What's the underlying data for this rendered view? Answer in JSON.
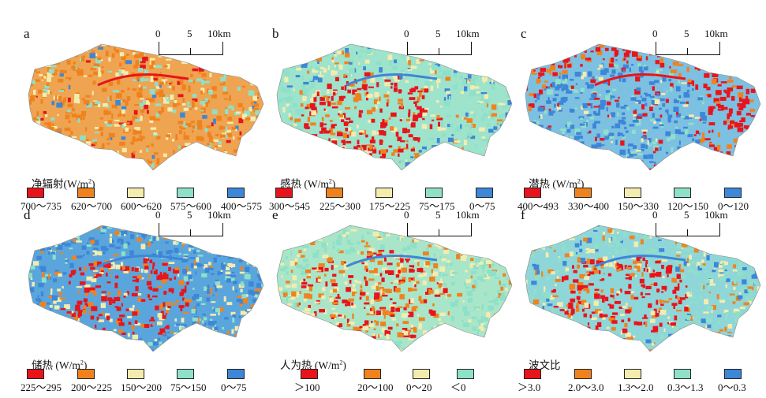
{
  "panels": [
    {
      "letter": "a",
      "legend_title": "净辐射(W/m",
      "legend_unit_tail": ")",
      "scale": {
        "t0": "0",
        "t5": "5",
        "t10": "10km"
      },
      "legend": [
        {
          "label": "700～735",
          "color": "#e8141c"
        },
        {
          "label": "620～700",
          "color": "#f0821e"
        },
        {
          "label": "600～620",
          "color": "#f4ecae"
        },
        {
          "label": "575～600",
          "color": "#8fe0c8"
        },
        {
          "label": "400～575",
          "color": "#3d86d8"
        }
      ],
      "dominant": "#eea451"
    },
    {
      "letter": "b",
      "legend_title": "感热 (W/m",
      "legend_unit_tail": ")",
      "scale": {
        "t0": "0",
        "t5": "5",
        "t10": "10km"
      },
      "legend": [
        {
          "label": "300～545",
          "color": "#e8141c"
        },
        {
          "label": "225～300",
          "color": "#f0821e"
        },
        {
          "label": "175～225",
          "color": "#f4ecae"
        },
        {
          "label": "75～175",
          "color": "#8fe0c8"
        },
        {
          "label": "0～75",
          "color": "#3d86d8"
        }
      ],
      "dominant": "#9ee3cc"
    },
    {
      "letter": "c",
      "legend_title": "潜热 (W/m",
      "legend_unit_tail": ")",
      "scale": {
        "t0": "0",
        "t5": "5",
        "t10": "10km"
      },
      "legend": [
        {
          "label": "400～493",
          "color": "#e8141c"
        },
        {
          "label": "330～400",
          "color": "#f0821e"
        },
        {
          "label": "150～330",
          "color": "#f4ecae"
        },
        {
          "label": "120～150",
          "color": "#8fe0c8"
        },
        {
          "label": "0～120",
          "color": "#3d86d8"
        }
      ],
      "dominant": "#7cc0e2"
    },
    {
      "letter": "d",
      "legend_title": "储热 (W/m",
      "legend_unit_tail": ")",
      "scale": {
        "t0": "0",
        "t5": "5",
        "t10": "10km"
      },
      "legend": [
        {
          "label": "225～295",
          "color": "#e8141c"
        },
        {
          "label": "200～225",
          "color": "#f0821e"
        },
        {
          "label": "150～200",
          "color": "#f4ecae"
        },
        {
          "label": "75～150",
          "color": "#8fe0c8"
        },
        {
          "label": "0～75",
          "color": "#3d86d8"
        }
      ],
      "dominant": "#5aa6dc"
    },
    {
      "letter": "e",
      "legend_title": "人为热 (W/m",
      "legend_unit_tail": ")",
      "scale": {
        "t0": "0",
        "t5": "5",
        "t10": "10km"
      },
      "legend": [
        {
          "label": "＞100",
          "color": "#e8141c"
        },
        {
          "label": "20～100",
          "color": "#f0821e"
        },
        {
          "label": "0～20",
          "color": "#f4ecae"
        },
        {
          "label": "＜0",
          "color": "#8fe0c8"
        }
      ],
      "dominant": "#a9e6c9"
    },
    {
      "letter": "f",
      "legend_title": "波文比",
      "legend_unit_tail": "",
      "scale": {
        "t0": "0",
        "t5": "5",
        "t10": "10km"
      },
      "legend": [
        {
          "label": "＞3.0",
          "color": "#e8141c"
        },
        {
          "label": "2.0～3.0",
          "color": "#f0821e"
        },
        {
          "label": "1.3～2.0",
          "color": "#f4ecae"
        },
        {
          "label": "0.3～1.3",
          "color": "#8fe0c8"
        },
        {
          "label": "0～0.3",
          "color": "#3d86d8"
        }
      ],
      "dominant": "#8fd6d9"
    }
  ]
}
